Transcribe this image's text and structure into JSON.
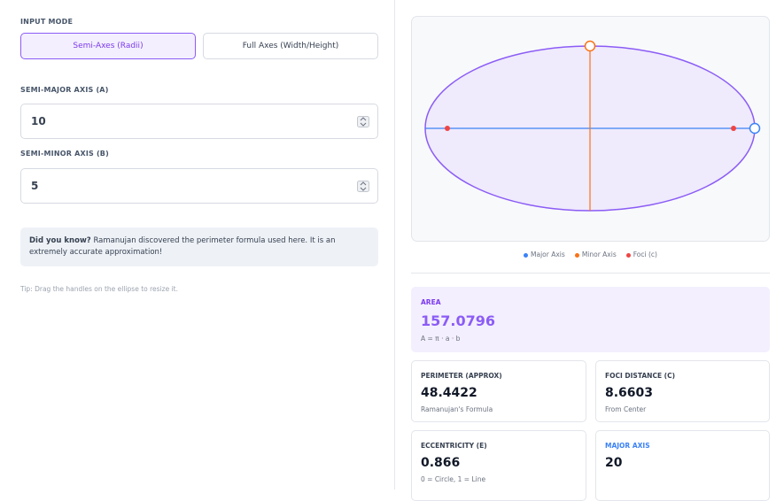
{
  "input_mode": {
    "label": "INPUT MODE",
    "options": [
      "Semi-Axes (Radii)",
      "Full Axes (Width/Height)"
    ],
    "selected": 0
  },
  "fields": [
    {
      "label": "SEMI-MAJOR AXIS (A)",
      "value": "10"
    },
    {
      "label": "SEMI-MINOR AXIS (B)",
      "value": "5"
    }
  ],
  "info": {
    "title": "Did you know?",
    "text": "Ramanujan discovered the perimeter formula used here. It is an extremely accurate approximation!"
  },
  "tip": "Tip: Drag the handles on the ellipse to resize it.",
  "legend": [
    "Major Axis",
    "Minor Axis",
    "Foci (c)"
  ],
  "results": [
    {
      "label": "AREA",
      "value": "157.0796",
      "note": "A = π · a · b"
    },
    {
      "label": "PERIMETER (APPROX)",
      "value": "48.4422",
      "note": "Ramanujan's Formula"
    },
    {
      "label": "FOCI DISTANCE (C)",
      "value": "8.6603",
      "note": "From Center"
    },
    {
      "label": "ECCENTRICITY (E)",
      "value": "0.866",
      "note": "0 = Circle, 1 = Line"
    },
    {
      "label": "MAJOR AXIS",
      "value": "20"
    }
  ]
}
